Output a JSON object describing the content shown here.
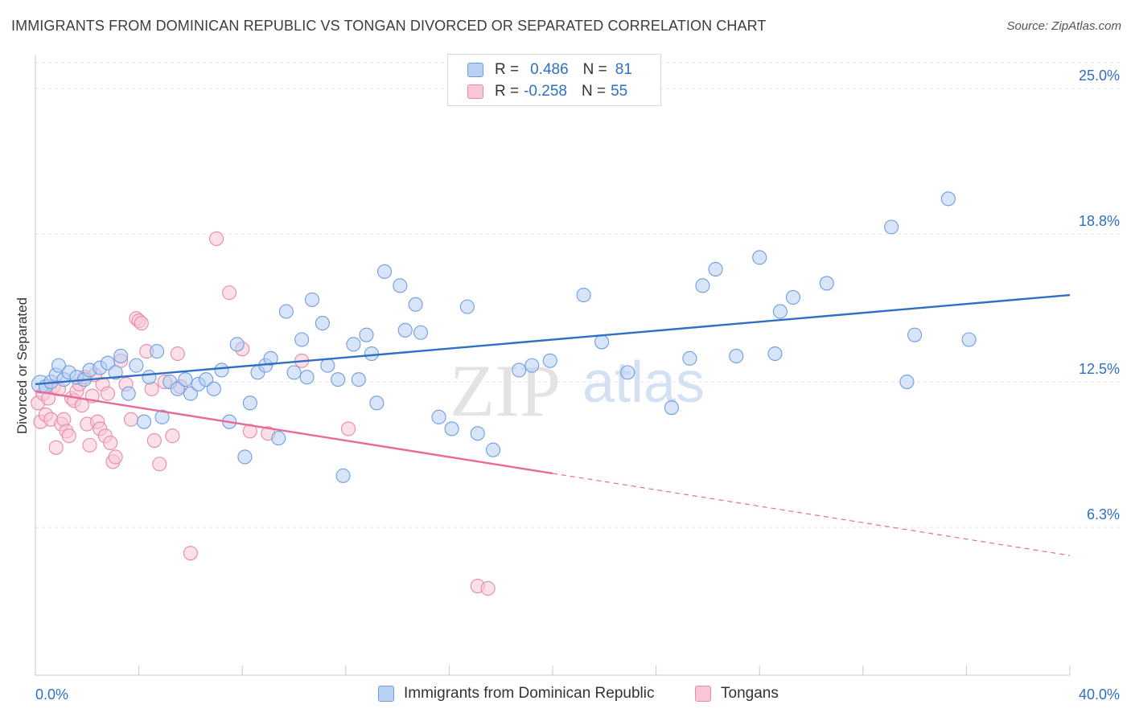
{
  "title": "IMMIGRANTS FROM DOMINICAN REPUBLIC VS TONGAN DIVORCED OR SEPARATED CORRELATION CHART",
  "source": "Source: ZipAtlas.com",
  "watermark": {
    "zip": "ZIP",
    "atlas": "atlas"
  },
  "legend": {
    "series": [
      {
        "r_label": "R =",
        "r_value": "0.486",
        "n_label": "N =",
        "n_value": "81"
      },
      {
        "r_label": "R =",
        "r_value": "-0.258",
        "n_label": "N =",
        "n_value": "55"
      }
    ]
  },
  "bottom_legend": [
    "Immigrants from Dominican Republic",
    "Tongans"
  ],
  "chart_data": {
    "type": "scatter",
    "title": "IMMIGRANTS FROM DOMINICAN REPUBLIC VS TONGAN DIVORCED OR SEPARATED CORRELATION CHART",
    "xlabel": "",
    "ylabel": "Divorced or Separated",
    "xlim": [
      0,
      40
    ],
    "ylim": [
      0,
      26.1
    ],
    "x_tick_labels": [
      "0.0%",
      "40.0%"
    ],
    "y_ticks": [
      6.3,
      12.5,
      18.8,
      25.0
    ],
    "y_tick_labels": [
      "6.3%",
      "12.5%",
      "18.8%",
      "25.0%"
    ],
    "grid": "horizontal dashed",
    "legend_position": "top-center",
    "colors": {
      "blue": "#6f9de0",
      "blue_fill": "#b8d0f2",
      "pink": "#e98aa9",
      "pink_fill": "#f8c6d6",
      "blue_line": "#2f6fc4",
      "pink_line": "#e86a96",
      "tick_label": "#2f6fc4"
    },
    "series": [
      {
        "name": "Immigrants from Dominican Republic",
        "color": "#6f9de0",
        "points": [
          [
            0.2,
            12.4
          ],
          [
            0.4,
            12.3
          ],
          [
            0.6,
            12.5
          ],
          [
            0.8,
            12.8
          ],
          [
            0.9,
            13.2
          ],
          [
            1.1,
            12.6
          ],
          [
            1.3,
            12.9
          ],
          [
            1.6,
            12.7
          ],
          [
            1.9,
            12.6
          ],
          [
            2.1,
            13.0
          ],
          [
            2.5,
            13.1
          ],
          [
            2.8,
            13.3
          ],
          [
            3.1,
            12.9
          ],
          [
            3.3,
            13.6
          ],
          [
            3.6,
            12.0
          ],
          [
            3.9,
            13.2
          ],
          [
            4.2,
            10.8
          ],
          [
            4.4,
            12.7
          ],
          [
            4.7,
            13.8
          ],
          [
            4.9,
            11.0
          ],
          [
            5.2,
            12.5
          ],
          [
            5.5,
            12.2
          ],
          [
            5.8,
            12.6
          ],
          [
            6.0,
            12.0
          ],
          [
            6.3,
            12.4
          ],
          [
            6.6,
            12.6
          ],
          [
            6.9,
            12.2
          ],
          [
            7.2,
            13.0
          ],
          [
            7.5,
            10.8
          ],
          [
            7.8,
            14.1
          ],
          [
            8.1,
            9.3
          ],
          [
            8.3,
            11.6
          ],
          [
            8.6,
            12.9
          ],
          [
            8.9,
            13.2
          ],
          [
            9.1,
            13.5
          ],
          [
            9.4,
            10.1
          ],
          [
            9.7,
            15.5
          ],
          [
            10.0,
            12.9
          ],
          [
            10.3,
            14.3
          ],
          [
            10.5,
            12.7
          ],
          [
            10.7,
            16.0
          ],
          [
            11.1,
            15.0
          ],
          [
            11.3,
            13.2
          ],
          [
            11.7,
            12.6
          ],
          [
            11.9,
            8.5
          ],
          [
            12.3,
            14.1
          ],
          [
            12.5,
            12.6
          ],
          [
            12.8,
            14.5
          ],
          [
            13.0,
            13.7
          ],
          [
            13.2,
            11.6
          ],
          [
            13.5,
            17.2
          ],
          [
            14.1,
            16.6
          ],
          [
            14.3,
            14.7
          ],
          [
            14.7,
            15.8
          ],
          [
            14.9,
            14.6
          ],
          [
            15.6,
            11.0
          ],
          [
            16.1,
            10.5
          ],
          [
            16.7,
            15.7
          ],
          [
            17.1,
            10.3
          ],
          [
            17.7,
            9.6
          ],
          [
            18.7,
            13.0
          ],
          [
            19.2,
            13.2
          ],
          [
            19.9,
            13.4
          ],
          [
            21.2,
            16.2
          ],
          [
            21.9,
            14.2
          ],
          [
            22.9,
            12.9
          ],
          [
            24.6,
            11.4
          ],
          [
            25.3,
            13.5
          ],
          [
            25.8,
            16.6
          ],
          [
            26.3,
            17.3
          ],
          [
            27.1,
            13.6
          ],
          [
            28.0,
            17.8
          ],
          [
            28.6,
            13.7
          ],
          [
            28.8,
            15.5
          ],
          [
            29.3,
            16.1
          ],
          [
            30.6,
            16.7
          ],
          [
            33.1,
            19.1
          ],
          [
            33.7,
            12.5
          ],
          [
            34.0,
            14.5
          ],
          [
            35.3,
            20.3
          ],
          [
            36.1,
            14.3
          ]
        ]
      },
      {
        "name": "Tongans",
        "color": "#e98aa9",
        "points": [
          [
            0.1,
            11.6
          ],
          [
            0.2,
            10.8
          ],
          [
            0.3,
            12.0
          ],
          [
            0.4,
            11.1
          ],
          [
            0.5,
            11.8
          ],
          [
            0.6,
            10.9
          ],
          [
            0.7,
            12.3
          ],
          [
            0.8,
            9.7
          ],
          [
            0.9,
            12.2
          ],
          [
            1.0,
            10.7
          ],
          [
            1.1,
            10.9
          ],
          [
            1.2,
            10.4
          ],
          [
            1.3,
            10.2
          ],
          [
            1.4,
            11.8
          ],
          [
            1.5,
            11.7
          ],
          [
            1.6,
            12.1
          ],
          [
            1.7,
            12.4
          ],
          [
            1.8,
            11.5
          ],
          [
            1.9,
            12.7
          ],
          [
            2.0,
            10.7
          ],
          [
            2.1,
            9.8
          ],
          [
            2.2,
            11.9
          ],
          [
            2.3,
            12.8
          ],
          [
            2.4,
            10.8
          ],
          [
            2.5,
            10.5
          ],
          [
            2.6,
            12.4
          ],
          [
            2.7,
            10.2
          ],
          [
            2.8,
            12.0
          ],
          [
            2.9,
            9.9
          ],
          [
            3.0,
            9.1
          ],
          [
            3.1,
            9.3
          ],
          [
            3.3,
            13.4
          ],
          [
            3.5,
            12.4
          ],
          [
            3.7,
            10.9
          ],
          [
            3.9,
            15.2
          ],
          [
            4.0,
            15.1
          ],
          [
            4.1,
            15.0
          ],
          [
            4.3,
            13.8
          ],
          [
            4.5,
            12.2
          ],
          [
            4.6,
            10.0
          ],
          [
            4.8,
            9.0
          ],
          [
            5.0,
            12.5
          ],
          [
            5.3,
            10.2
          ],
          [
            5.5,
            13.7
          ],
          [
            5.6,
            12.3
          ],
          [
            6.0,
            5.2
          ],
          [
            7.0,
            18.6
          ],
          [
            7.5,
            16.3
          ],
          [
            8.0,
            13.9
          ],
          [
            8.3,
            10.4
          ],
          [
            9.0,
            10.3
          ],
          [
            10.3,
            13.4
          ],
          [
            12.1,
            10.5
          ],
          [
            17.1,
            3.8
          ],
          [
            17.5,
            3.7
          ]
        ]
      }
    ],
    "trendlines": [
      {
        "series": "Immigrants from Dominican Republic",
        "x": [
          0,
          40
        ],
        "y": [
          12.4,
          16.2
        ],
        "style": "solid"
      },
      {
        "series": "Tongans",
        "x_solid": [
          0,
          20
        ],
        "y_solid": [
          12.1,
          8.6
        ],
        "x_dashed": [
          20,
          40
        ],
        "y_dashed": [
          8.6,
          5.1
        ],
        "style": "solid then dashed"
      }
    ]
  }
}
